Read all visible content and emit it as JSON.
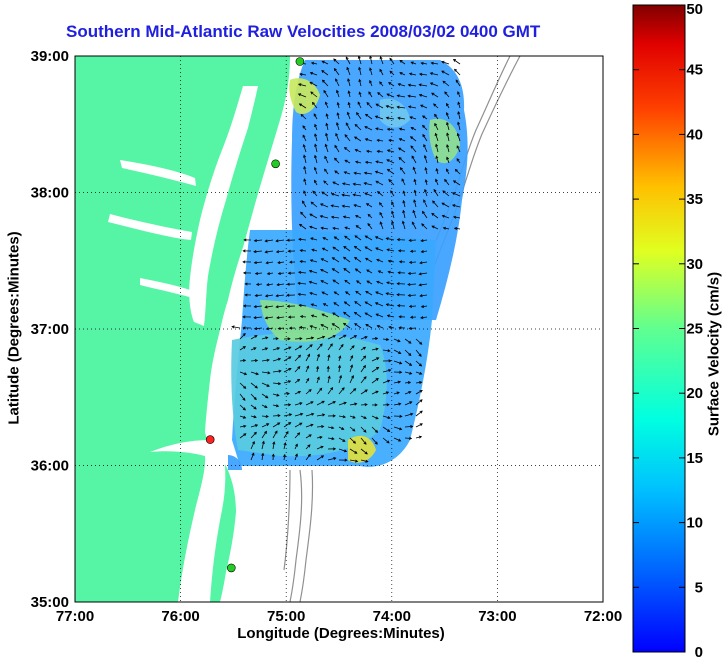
{
  "title": "Southern Mid-Atlantic Raw Velocities 2008/03/02 0400 GMT",
  "x_axis": {
    "label": "Longitude (Degrees:Minutes)",
    "ticks": [
      "77:00",
      "76:00",
      "75:00",
      "74:00",
      "73:00",
      "72:00"
    ]
  },
  "y_axis": {
    "label": "Latitude (Degrees:Minutes)",
    "ticks": [
      "39:00",
      "38:00",
      "37:00",
      "36:00",
      "35:00"
    ]
  },
  "colorbar": {
    "label": "Surface Velocity (cm/s)",
    "ticks": [
      "0",
      "5",
      "10",
      "15",
      "20",
      "25",
      "30",
      "35",
      "40",
      "45",
      "50"
    ],
    "min": 0,
    "max": 50,
    "colormap": "jet"
  },
  "map": {
    "lon_range_degW": [
      77,
      72
    ],
    "lat_range_degN": [
      35,
      39
    ],
    "land_color": "#55f5a5",
    "water_color": "#ffffff",
    "bathymetry_color": "#909090",
    "vector_color": "#000000",
    "grid": "dotted",
    "stations": [
      {
        "color": "#22cc22",
        "lon_degW": 74.87,
        "lat_degN": 38.96
      },
      {
        "color": "#22cc22",
        "lon_degW": 75.1,
        "lat_degN": 38.21
      },
      {
        "color": "#ff2020",
        "lon_degW": 75.72,
        "lat_degN": 36.19
      },
      {
        "color": "#22cc22",
        "lon_degW": 75.52,
        "lat_degN": 35.25
      }
    ]
  }
}
